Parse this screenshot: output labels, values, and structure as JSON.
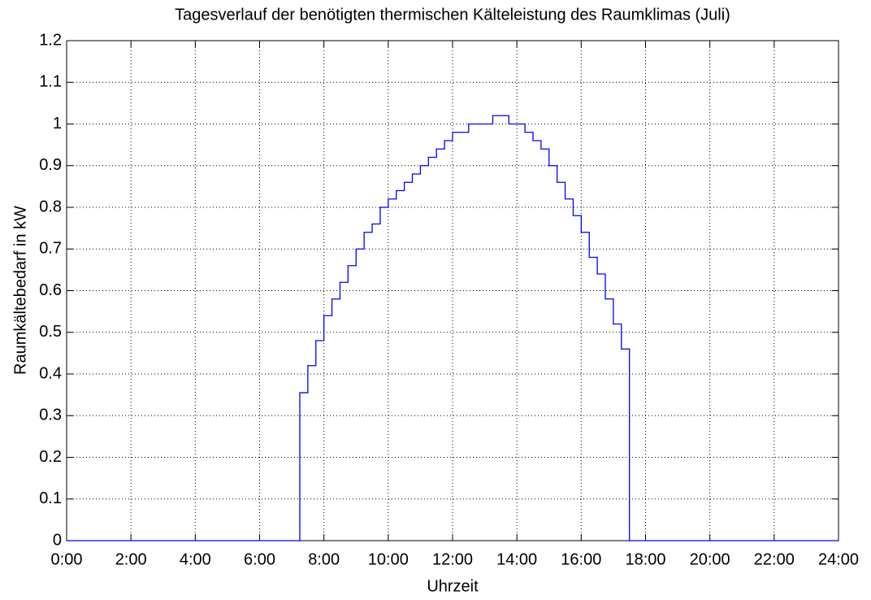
{
  "chart_data": {
    "type": "line",
    "step": "post",
    "title": "Tagesverlauf der benötigten thermischen Kälteleistung des Raumklimas (Juli)",
    "xlabel": "Uhrzeit",
    "ylabel": "Raumkältebedarf in kW",
    "x": [
      0,
      7.25,
      7.5,
      7.75,
      8,
      8.25,
      8.5,
      8.75,
      9,
      9.25,
      9.5,
      9.75,
      10,
      10.25,
      10.5,
      10.75,
      11,
      11.25,
      11.5,
      11.75,
      12,
      12.25,
      12.5,
      12.75,
      13,
      13.25,
      13.5,
      13.75,
      14,
      14.25,
      14.5,
      14.75,
      15,
      15.25,
      15.5,
      15.75,
      16,
      16.25,
      16.5,
      16.75,
      17,
      17.25,
      17.5,
      24
    ],
    "series": [
      {
        "color": "#0000ff",
        "values": [
          0,
          0.355,
          0.42,
          0.48,
          0.54,
          0.58,
          0.62,
          0.66,
          0.7,
          0.74,
          0.76,
          0.8,
          0.82,
          0.84,
          0.86,
          0.88,
          0.9,
          0.92,
          0.94,
          0.96,
          0.98,
          0.98,
          1.0,
          1.0,
          1.0,
          1.02,
          1.02,
          1.0,
          1.0,
          0.98,
          0.96,
          0.94,
          0.9,
          0.86,
          0.82,
          0.78,
          0.74,
          0.68,
          0.64,
          0.58,
          0.52,
          0.46,
          0,
          0
        ]
      }
    ],
    "xlim": [
      0,
      24
    ],
    "xticks": [
      {
        "value": 0,
        "label": "0:00"
      },
      {
        "value": 2,
        "label": "2:00"
      },
      {
        "value": 4,
        "label": "4:00"
      },
      {
        "value": 6,
        "label": "6:00"
      },
      {
        "value": 8,
        "label": "8:00"
      },
      {
        "value": 10,
        "label": "10:00"
      },
      {
        "value": 12,
        "label": "12:00"
      },
      {
        "value": 14,
        "label": "14:00"
      },
      {
        "value": 16,
        "label": "16:00"
      },
      {
        "value": 18,
        "label": "18:00"
      },
      {
        "value": 20,
        "label": "20:00"
      },
      {
        "value": 22,
        "label": "22:00"
      },
      {
        "value": 24,
        "label": "24:00"
      }
    ],
    "ylim": [
      0,
      1.2
    ],
    "yticks": [
      0,
      0.1,
      0.2,
      0.3,
      0.4,
      0.5,
      0.6,
      0.7,
      0.8,
      0.9,
      1,
      1.1,
      1.2
    ],
    "grid": true
  }
}
